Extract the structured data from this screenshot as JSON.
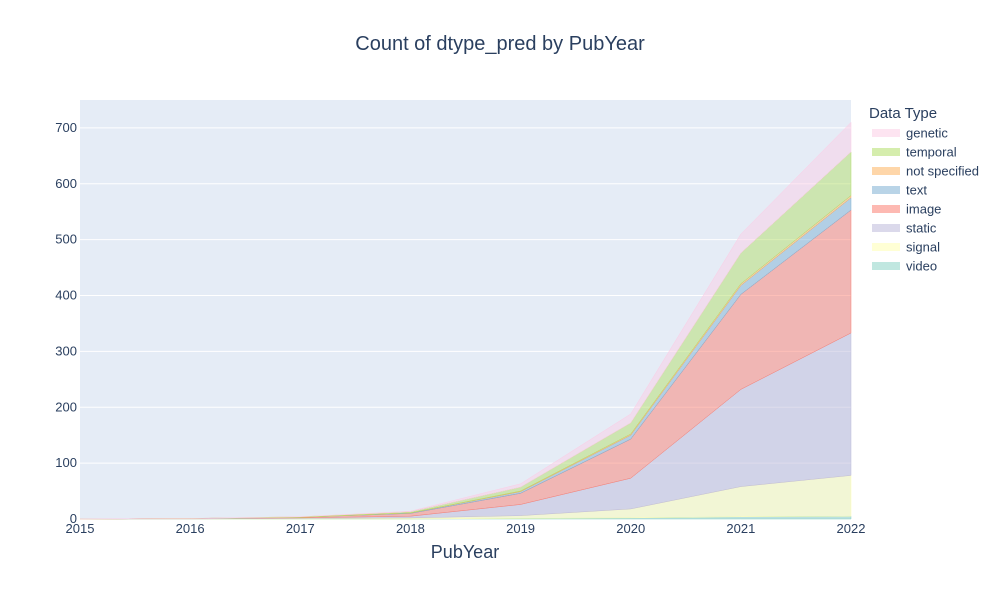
{
  "chart_data": {
    "type": "area",
    "stacked": true,
    "title": "Count of dtype_pred by PubYear",
    "xlabel": "PubYear",
    "ylabel": "",
    "x": [
      2015,
      2016,
      2017,
      2018,
      2019,
      2020,
      2021,
      2022
    ],
    "xlim": [
      2015,
      2022
    ],
    "ylim": [
      0,
      750
    ],
    "x_ticks": [
      2015,
      2016,
      2017,
      2018,
      2019,
      2020,
      2021,
      2022
    ],
    "y_ticks": [
      0,
      100,
      200,
      300,
      400,
      500,
      600,
      700
    ],
    "grid": true,
    "legend_title": "Data Type",
    "legend_position": "right",
    "plot_background": "#e5ecf6",
    "series": [
      {
        "name": "video",
        "color": "#8dd3c7",
        "values": [
          0,
          0,
          0,
          0,
          1,
          2,
          4,
          5
        ]
      },
      {
        "name": "signal",
        "color": "#ffffb3",
        "values": [
          0,
          0,
          1,
          2,
          5,
          16,
          54,
          73
        ]
      },
      {
        "name": "static",
        "color": "#bebada",
        "values": [
          0,
          1,
          1,
          3,
          20,
          55,
          174,
          255
        ]
      },
      {
        "name": "image",
        "color": "#fb8072",
        "values": [
          0,
          0,
          1,
          5,
          20,
          70,
          170,
          220
        ]
      },
      {
        "name": "text",
        "color": "#80b1d3",
        "values": [
          0,
          0,
          0,
          1,
          3,
          7,
          16,
          22
        ]
      },
      {
        "name": "not specified",
        "color": "#fdb462",
        "values": [
          0,
          0,
          0,
          0,
          1,
          2,
          3,
          4
        ]
      },
      {
        "name": "temporal",
        "color": "#b3de69",
        "values": [
          0,
          0,
          1,
          2,
          7,
          20,
          55,
          78
        ]
      },
      {
        "name": "genetic",
        "color": "#fccde5",
        "values": [
          0,
          0,
          0,
          1,
          6,
          16,
          34,
          53
        ]
      }
    ]
  }
}
